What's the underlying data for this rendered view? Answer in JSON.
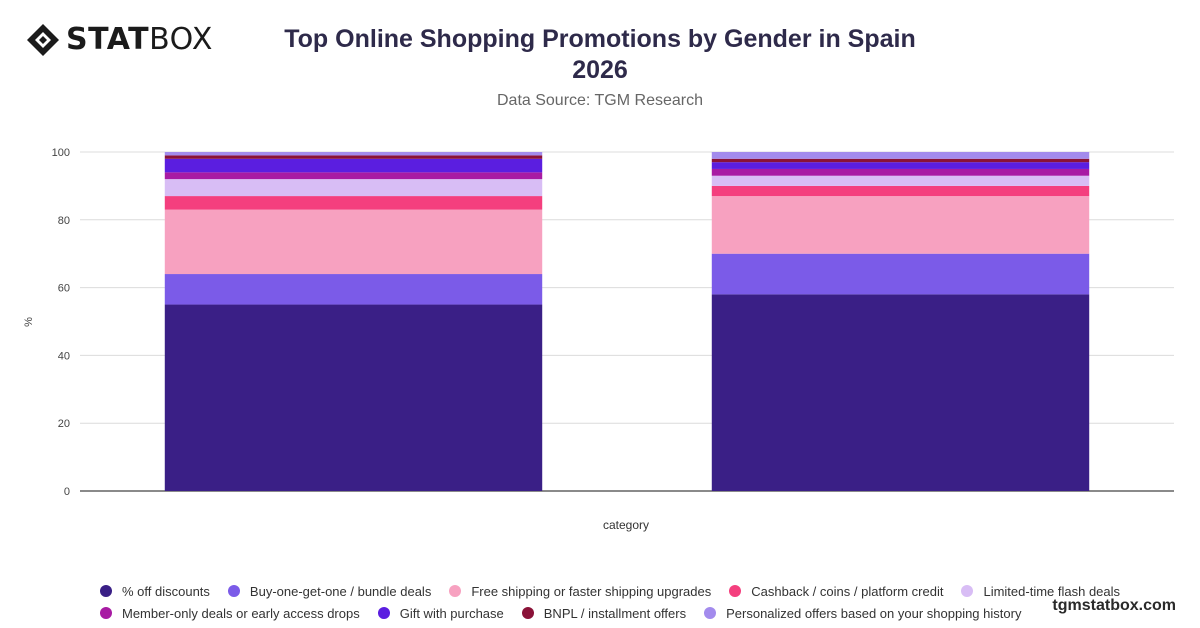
{
  "brand": {
    "logo_bold": "STAT",
    "logo_light": "BOX"
  },
  "header": {
    "title_line1": "Top Online Shopping Promotions by Gender in Spain",
    "title_line2": "2026",
    "subtitle": "Data Source: TGM Research"
  },
  "watermark": "tgmstatbox.com",
  "chart_data": {
    "type": "bar",
    "stacked": true,
    "categories": [
      "",
      ""
    ],
    "xlabel": "category",
    "ylabel": "%",
    "ylim": [
      0,
      100
    ],
    "yticks": [
      0,
      20,
      40,
      60,
      80,
      100
    ],
    "grid": true,
    "legend_position": "bottom",
    "series": [
      {
        "name": "% off discounts",
        "color": "#3a1f86",
        "values": [
          55,
          58
        ]
      },
      {
        "name": "Buy-one-get-one / bundle deals",
        "color": "#7b5be8",
        "values": [
          9,
          12
        ]
      },
      {
        "name": "Free shipping or faster shipping upgrades",
        "color": "#f7a1c0",
        "values": [
          19,
          17
        ]
      },
      {
        "name": "Cashback / coins / platform credit",
        "color": "#f43f7e",
        "values": [
          4,
          3
        ]
      },
      {
        "name": "Limited-time flash deals",
        "color": "#d8bdf5",
        "values": [
          5,
          3
        ]
      },
      {
        "name": "Member-only deals or early access drops",
        "color": "#a81ba3",
        "values": [
          2,
          2
        ]
      },
      {
        "name": "Gift with purchase",
        "color": "#5b1ee0",
        "values": [
          4,
          2
        ]
      },
      {
        "name": "BNPL / installment offers",
        "color": "#8a1238",
        "values": [
          1,
          1
        ]
      },
      {
        "name": "Personalized offers based on your shopping history",
        "color": "#a38bed",
        "values": [
          1,
          2
        ]
      }
    ]
  }
}
